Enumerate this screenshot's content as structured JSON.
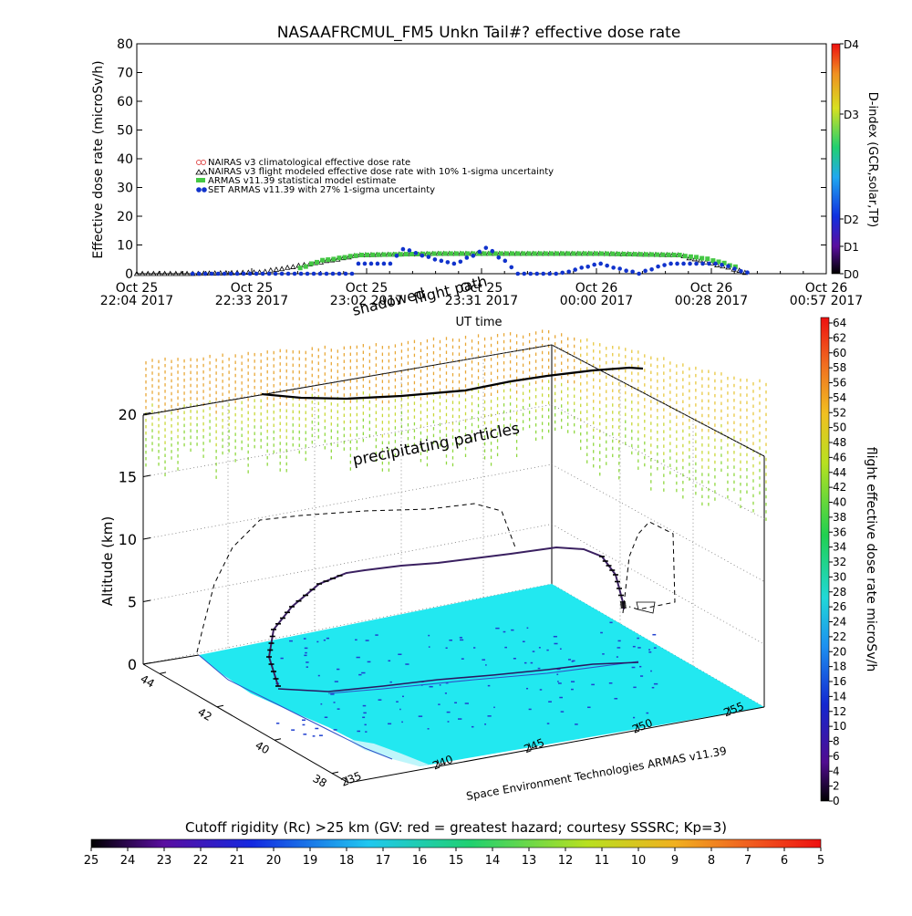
{
  "top_chart": {
    "title": "NASAAFRCMUL_FM5 Unkn Tail#? effective dose rate",
    "ylabel": "Effective dose rate (microSv/h)",
    "xlabel": "UT time",
    "y_ticks": [
      0,
      10,
      20,
      30,
      40,
      50,
      60,
      70,
      80
    ],
    "x_ticks": [
      {
        "line1": "Oct 25",
        "line2": "22:04 2017"
      },
      {
        "line1": "Oct 25",
        "line2": "22:33 2017"
      },
      {
        "line1": "Oct 25",
        "line2": "23:02 2017"
      },
      {
        "line1": "Oct 25",
        "line2": "23:31 2017"
      },
      {
        "line1": "Oct 26",
        "line2": "00:00 2017"
      },
      {
        "line1": "Oct 26",
        "line2": "00:28 2017"
      },
      {
        "line1": "Oct 26",
        "line2": "00:57 2017"
      }
    ],
    "legend": [
      {
        "symbol": "o",
        "color": "#e05050",
        "label": "NAIRAS v3 climatological effective dose rate"
      },
      {
        "symbol": "△",
        "color": "#000000",
        "label": "NAIRAS v3 flight modeled effective dose rate with 10% 1-sigma uncertainty"
      },
      {
        "symbol": "*",
        "color": "#44c844",
        "label": "ARMAS v11.39 statistical model estimate"
      },
      {
        "symbol": "●",
        "color": "#1133cc",
        "label": "SET ARMAS v11.39 with 27% 1-sigma uncertainty"
      }
    ],
    "colorbar_title": "D-index (GCR,solar,TP)",
    "colorbar_labels": [
      "D0",
      "D1",
      "D2",
      "D3",
      "D4"
    ]
  },
  "chart_data": [
    {
      "type": "line",
      "title": "NASAAFRCMUL_FM5 Unkn Tail#? effective dose rate",
      "xlabel": "UT time",
      "ylabel": "Effective dose rate (microSv/h)",
      "x_range": [
        "2017-10-25 22:04",
        "2017-10-26 00:57"
      ],
      "ylim": [
        0,
        80
      ],
      "series": [
        {
          "name": "NAIRAS v3 flight modeled effective dose rate with 10% 1-sigma uncertainty",
          "x": [
            "22:04",
            "22:18",
            "22:35",
            "22:50",
            "23:00",
            "23:20",
            "23:40",
            "00:00",
            "00:20",
            "00:30",
            "00:38"
          ],
          "values": [
            0,
            0,
            0.5,
            4,
            6.5,
            7,
            7,
            7,
            6.5,
            3,
            0
          ]
        },
        {
          "name": "ARMAS v11.39 statistical model estimate",
          "x": [
            "22:45",
            "22:50",
            "23:00",
            "23:20",
            "23:40",
            "00:00",
            "00:20",
            "00:28",
            "00:35"
          ],
          "values": [
            2,
            4.5,
            6.5,
            7,
            7,
            7,
            6.5,
            5,
            2
          ]
        },
        {
          "name": "SET ARMAS v11.39 with 27% 1-sigma uncertainty",
          "x": [
            "22:18",
            "22:30",
            "22:45",
            "22:58",
            "23:00",
            "23:08",
            "23:10",
            "23:20",
            "23:24",
            "23:32",
            "23:40",
            "23:50",
            "24:00",
            "00:10",
            "00:17",
            "00:30",
            "00:38"
          ],
          "values": [
            0,
            0,
            0,
            0,
            3.5,
            3.5,
            9,
            4.5,
            3.5,
            9,
            0,
            0,
            3.5,
            0,
            3.5,
            3.5,
            0
          ]
        }
      ]
    },
    {
      "type": "scatter",
      "title": "",
      "zlabel": "Altitude (km)",
      "z_ticks": [
        0,
        5,
        10,
        15,
        20
      ],
      "x_ticks": [
        235,
        240,
        245,
        250,
        255
      ],
      "y_ticks": [
        38,
        40,
        42,
        44
      ],
      "annotations": [
        "precipitating particles",
        "shadowed flight path"
      ],
      "colorbar_title": "flight effective dose rate microSv/h",
      "colorbar_range": [
        0,
        64
      ]
    }
  ],
  "map3d": {
    "zlabel": "Altitude (km)",
    "z_ticks": [
      "0",
      "5",
      "10",
      "15",
      "20"
    ],
    "lon_ticks": [
      "235",
      "240",
      "245",
      "250",
      "255"
    ],
    "lat_ticks": [
      "38",
      "40",
      "42",
      "44"
    ],
    "annotation_particles": "precipitating particles",
    "annotation_shadow_1": "shadowed",
    "annotation_shadow_2": "flight path",
    "credit": "Space Environment Technologies ARMAS v11.39",
    "colorbar_title": "flight effective dose rate microSv/h",
    "colorbar_ticks": [
      "0",
      "2",
      "4",
      "6",
      "8",
      "10",
      "12",
      "14",
      "16",
      "18",
      "20",
      "22",
      "24",
      "26",
      "28",
      "30",
      "32",
      "34",
      "36",
      "38",
      "40",
      "42",
      "44",
      "46",
      "48",
      "50",
      "52",
      "54",
      "56",
      "58",
      "60",
      "62",
      "64"
    ]
  },
  "bottom_bar": {
    "title": "Cutoff rigidity (Rc) >25 km (GV: red = greatest hazard; courtesy SSSRC; Kp=3)",
    "ticks": [
      "25",
      "24",
      "23",
      "22",
      "21",
      "20",
      "19",
      "18",
      "17",
      "16",
      "15",
      "14",
      "13",
      "12",
      "11",
      "10",
      "9",
      "8",
      "7",
      "6",
      "5"
    ]
  },
  "colors": {
    "ground": "#22e8f0",
    "particles_warm": "#e8b040",
    "particles_cool": "#9ad840"
  }
}
